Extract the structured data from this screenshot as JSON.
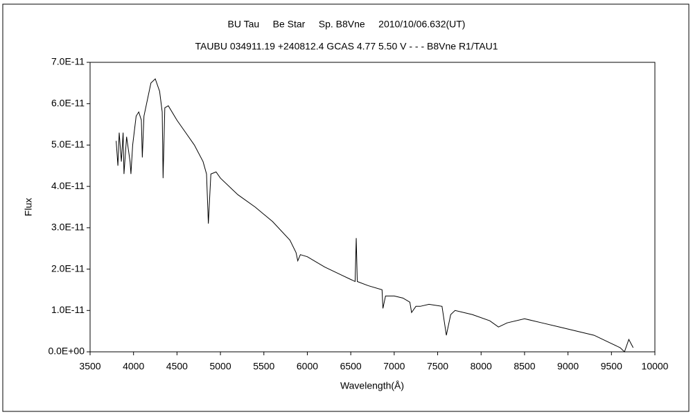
{
  "chart_data": {
    "type": "line",
    "title": "BU Tau     Be Star     Sp. B8Vne     2010/10/06.632(UT)",
    "subtitle": "TAUBU 034911.19 +240812.4 GCAS 4.77 5.50 V - - - B8Vne R1/TAU1",
    "x_label": "Wavelength(Å)",
    "y_label": "Flux",
    "x": [
      3800,
      3820,
      3835,
      3860,
      3880,
      3890,
      3920,
      3960,
      3970,
      3990,
      4030,
      4060,
      4090,
      4101,
      4120,
      4200,
      4250,
      4300,
      4330,
      4340,
      4360,
      4400,
      4500,
      4600,
      4700,
      4800,
      4840,
      4861,
      4890,
      4950,
      5000,
      5200,
      5400,
      5600,
      5800,
      5870,
      5890,
      5920,
      6000,
      6200,
      6400,
      6500,
      6550,
      6563,
      6575,
      6700,
      6860,
      6870,
      6900,
      7000,
      7100,
      7180,
      7200,
      7250,
      7300,
      7400,
      7550,
      7600,
      7650,
      7700,
      7900,
      8100,
      8200,
      8300,
      8500,
      8700,
      8900,
      9100,
      9300,
      9400,
      9500,
      9600,
      9650,
      9700,
      9750
    ],
    "series": [
      {
        "name": "BU Tau",
        "color": "#000000",
        "values": [
          5.1e-11,
          4.5e-11,
          5.3e-11,
          4.6e-11,
          5.3e-11,
          4.3e-11,
          5.2e-11,
          4.6e-11,
          4.3e-11,
          5e-11,
          5.7e-11,
          5.8e-11,
          5.6e-11,
          4.7e-11,
          5.7e-11,
          6.5e-11,
          6.6e-11,
          6.3e-11,
          5.8e-11,
          4.2e-11,
          5.9e-11,
          5.95e-11,
          5.6e-11,
          5.3e-11,
          5e-11,
          4.6e-11,
          4.3e-11,
          3.1e-11,
          4.3e-11,
          4.35e-11,
          4.2e-11,
          3.8e-11,
          3.5e-11,
          3.15e-11,
          2.7e-11,
          2.4e-11,
          2.2e-11,
          2.35e-11,
          2.3e-11,
          2.05e-11,
          1.85e-11,
          1.75e-11,
          1.7e-11,
          2.75e-11,
          1.7e-11,
          1.6e-11,
          1.5e-11,
          1.05e-11,
          1.35e-11,
          1.35e-11,
          1.3e-11,
          1.2e-11,
          9.5e-12,
          1.1e-11,
          1.1e-11,
          1.15e-11,
          1.1e-11,
          4e-12,
          9e-12,
          1e-11,
          9e-12,
          7.5e-12,
          6e-12,
          7e-12,
          8e-12,
          7e-12,
          6e-12,
          5e-12,
          4e-12,
          3e-12,
          2e-12,
          1e-12,
          0,
          3e-12,
          1e-12
        ]
      }
    ],
    "xlim": [
      3500,
      10000
    ],
    "xticks": [
      3500,
      4000,
      4500,
      5000,
      5500,
      6000,
      6500,
      7000,
      7500,
      8000,
      8500,
      9000,
      9500,
      10000
    ],
    "ylim": [
      0,
      7e-11
    ],
    "yticks": [
      {
        "value": 0,
        "label": "0.0E+00"
      },
      {
        "value": 1e-11,
        "label": "1.0E-11"
      },
      {
        "value": 2e-11,
        "label": "2.0E-11"
      },
      {
        "value": 3e-11,
        "label": "3.0E-11"
      },
      {
        "value": 4e-11,
        "label": "4.0E-11"
      },
      {
        "value": 5e-11,
        "label": "5.0E-11"
      },
      {
        "value": 6e-11,
        "label": "6.0E-11"
      },
      {
        "value": 7e-11,
        "label": "7.0E-11"
      }
    ],
    "grid": false
  }
}
